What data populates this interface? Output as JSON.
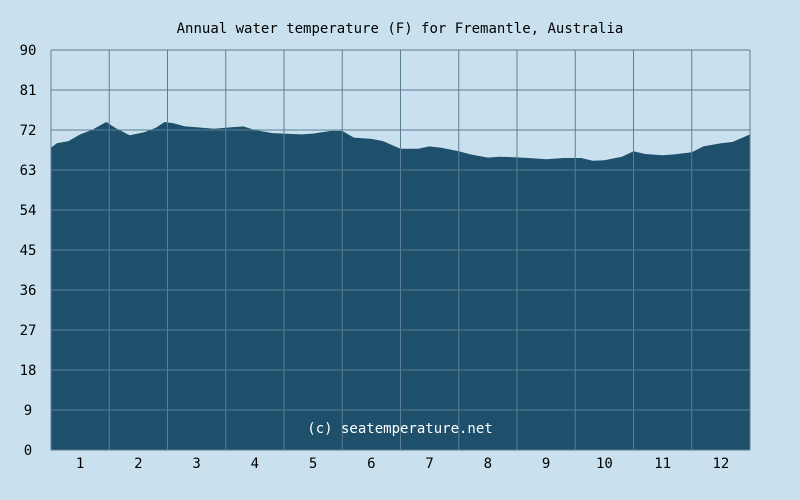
{
  "colors": {
    "background": "#c9e1ee",
    "plot_fill": "#1e4f6b",
    "grid": "#5a7f95",
    "text": "#000000",
    "watermark": "#ffffff"
  },
  "watermark": "(c) seatemperature.net",
  "chart_data": {
    "type": "area",
    "title": "Annual water temperature (F) for Fremantle, Australia",
    "xlabel": "",
    "ylabel": "",
    "xlim": [
      0.5,
      12.5
    ],
    "ylim": [
      0,
      90
    ],
    "y_ticks": [
      "0",
      "9",
      "18",
      "27",
      "36",
      "45",
      "54",
      "63",
      "72",
      "81",
      "90"
    ],
    "x_ticks": [
      "1",
      "2",
      "3",
      "4",
      "5",
      "6",
      "7",
      "8",
      "9",
      "10",
      "11",
      "12"
    ],
    "grid": true,
    "legend": "none",
    "series": [
      {
        "x": [
          0.5,
          0.6,
          0.8,
          1.0,
          1.2,
          1.45,
          1.6,
          1.85,
          2.1,
          2.3,
          2.45,
          2.6,
          2.8,
          3.0,
          3.3,
          3.6,
          3.8,
          4.0,
          4.3,
          4.5,
          4.8,
          5.0,
          5.3,
          5.5,
          5.7,
          6.0,
          6.2,
          6.5,
          6.8,
          7.0,
          7.2,
          7.5,
          7.7,
          8.0,
          8.2,
          8.4,
          8.7,
          9.0,
          9.3,
          9.6,
          9.8,
          10.0,
          10.3,
          10.5,
          10.7,
          11.0,
          11.2,
          11.5,
          11.7,
          12.0,
          12.2,
          12.5
        ],
        "values": [
          68.0,
          69.0,
          69.5,
          71.0,
          72.0,
          73.8,
          72.5,
          70.8,
          71.5,
          72.5,
          73.8,
          73.5,
          72.8,
          72.6,
          72.3,
          72.6,
          72.8,
          72.0,
          71.3,
          71.2,
          71.0,
          71.2,
          71.8,
          71.8,
          70.3,
          70.0,
          69.5,
          67.8,
          67.8,
          68.3,
          68.0,
          67.2,
          66.5,
          65.8,
          66.0,
          65.9,
          65.7,
          65.4,
          65.7,
          65.7,
          65.1,
          65.2,
          66.0,
          67.2,
          66.6,
          66.3,
          66.5,
          67.0,
          68.3,
          69.0,
          69.3,
          71.0
        ]
      }
    ]
  }
}
